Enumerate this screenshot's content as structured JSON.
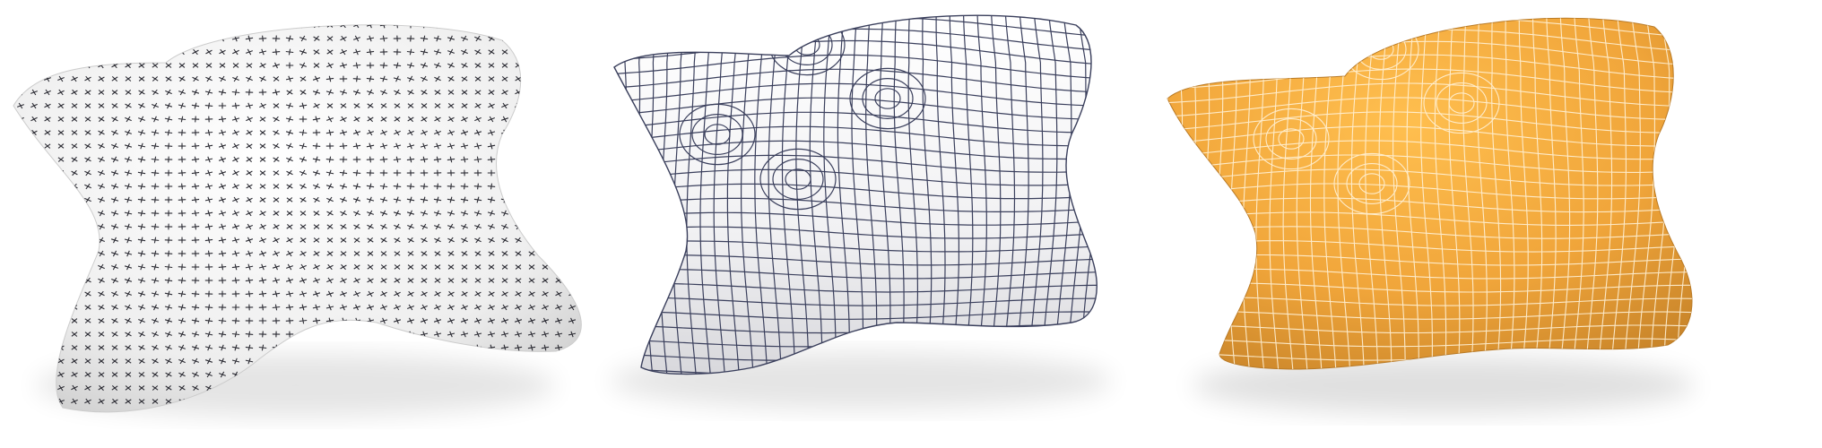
{
  "figure": {
    "panels": [
      {
        "id": "cross-field",
        "description_icon": "cross-field-surface",
        "surface_color": "#ffffff",
        "mark_color": "#2b2b33"
      },
      {
        "id": "quad-mesh-wire",
        "description_icon": "quad-mesh-surface",
        "surface_color": "#f4f4f6",
        "line_color": "#3a3f5c"
      },
      {
        "id": "quad-mesh-shaded",
        "description_icon": "quad-mesh-shaded-surface",
        "surface_color": "#f2a93b",
        "line_color": "#fff2d8"
      }
    ]
  }
}
